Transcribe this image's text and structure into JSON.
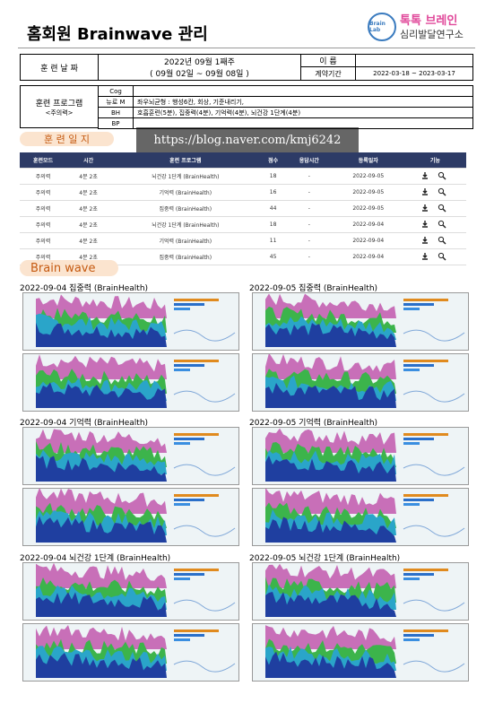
{
  "header": {
    "title": "홈회원 Brainwave 관리",
    "logo": {
      "brand": "톡톡 브레인",
      "org": "심리발달연구소",
      "badge": "Brain Lab"
    }
  },
  "info": {
    "date_label": "훈 련 날 짜",
    "week": "2022년 09월 1째주",
    "range": "( 09월 02일 ~ 09월 08일 )",
    "name_label": "이 름",
    "contract_label": "계약기간",
    "contract": "2022-03-18 ~ 2023-03-17"
  },
  "program": {
    "label": "훈련 프로그램",
    "sub": "<주의력>",
    "rows": [
      {
        "code": "Cog"
      },
      {
        "code": "뉴로 M",
        "detail": "좌우뇌균형 : 행성6칸, 회상, 기준내리기,"
      },
      {
        "code": "BH",
        "detail": "호흡훈련(5분), 집중력(4분), 기억력(4분), 뇌건강 1단계(4분)"
      },
      {
        "code": "BP"
      }
    ]
  },
  "log": {
    "title": "훈 련 일 지",
    "watermark": "https://blog.naver.com/kmj6242",
    "columns": [
      "훈련모드",
      "시간",
      "훈련 프로그램",
      "점수",
      "응답시간",
      "등록일자",
      "기능"
    ],
    "rows": [
      [
        "주의력",
        "4분 2초",
        "뇌건강 1단계 (BrainHealth)",
        18,
        "-",
        "2022-09-05"
      ],
      [
        "주의력",
        "4분 2초",
        "기억력 (BrainHealth)",
        16,
        "-",
        "2022-09-05"
      ],
      [
        "주의력",
        "4분 2초",
        "집중력 (BrainHealth)",
        44,
        "-",
        "2022-09-05"
      ],
      [
        "주의력",
        "4분 2초",
        "뇌건강 1단계 (BrainHealth)",
        18,
        "-",
        "2022-09-04"
      ],
      [
        "주의력",
        "4분 2초",
        "기억력 (BrainHealth)",
        11,
        "-",
        "2022-09-04"
      ],
      [
        "주의력",
        "4분 2초",
        "집중력 (BrainHealth)",
        45,
        "-",
        "2022-09-04"
      ]
    ]
  },
  "brainwave": {
    "title": "Brain wave",
    "panels": [
      {
        "caption": "2022-09-04 집중력 (BrainHealth)"
      },
      {
        "caption": "2022-09-05 집중력  (BrainHealth)"
      },
      {
        "caption": "2022-09-04 기억력 (BrainHealth)"
      },
      {
        "caption": "2022-09-05 기억력 (BrainHealth)"
      },
      {
        "caption": "2022-09-04 뇌건강 1단계 (BrainHealth)"
      },
      {
        "caption": "2022-09-05 뇌건강 1단계 (BrainHealth)"
      }
    ]
  }
}
